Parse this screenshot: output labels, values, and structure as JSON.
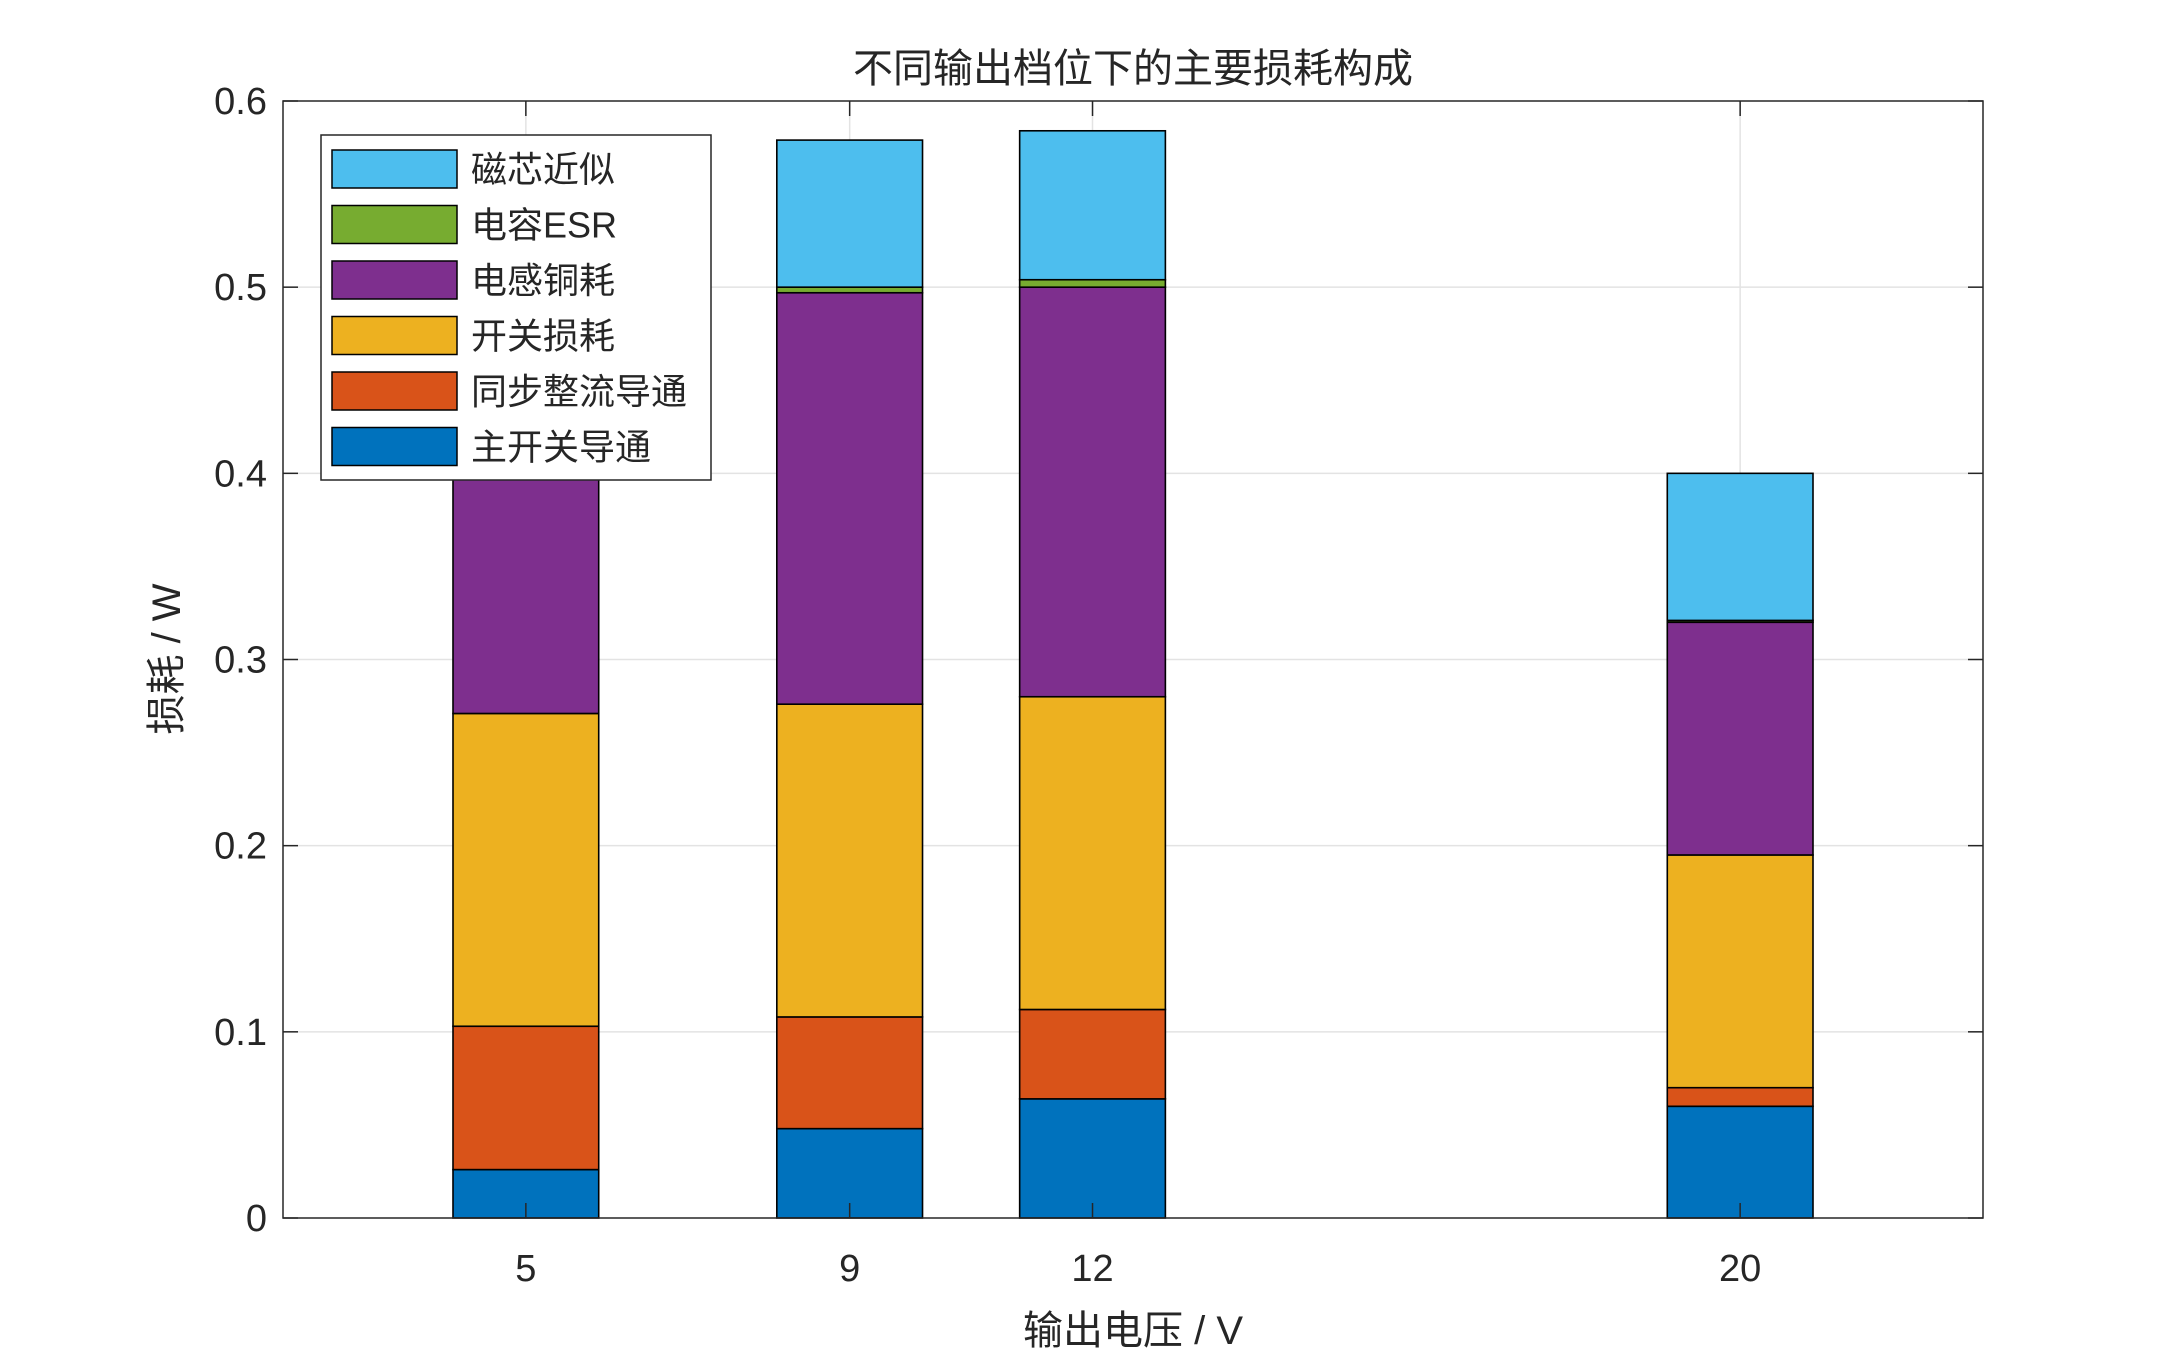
{
  "chart_data": {
    "type": "bar",
    "stacked": true,
    "title": "不同输出档位下的主要损耗构成",
    "xlabel": "输出电压 / V",
    "ylabel": "损耗 / W",
    "x": [
      5,
      9,
      12,
      20
    ],
    "xlim": [
      2,
      23
    ],
    "ylim": [
      0,
      0.6
    ],
    "x_ticks": [
      "5",
      "9",
      "12",
      "20"
    ],
    "y_ticks": [
      "0",
      "0.1",
      "0.2",
      "0.3",
      "0.4",
      "0.5",
      "0.6"
    ],
    "grid": true,
    "legend_position": "top-left",
    "series": [
      {
        "name": "主开关导通",
        "color": "#0072BD",
        "values": [
          0.026,
          0.048,
          0.064,
          0.06
        ]
      },
      {
        "name": "同步整流导通",
        "color": "#D95319",
        "values": [
          0.077,
          0.06,
          0.048,
          0.01
        ]
      },
      {
        "name": "开关损耗",
        "color": "#EDB120",
        "values": [
          0.168,
          0.168,
          0.168,
          0.125
        ]
      },
      {
        "name": "电感铜耗",
        "color": "#7E2F8E",
        "values": [
          0.139,
          0.221,
          0.22,
          0.125
        ]
      },
      {
        "name": "电容ESR",
        "color": "#77AC30",
        "values": [
          0.002,
          0.003,
          0.004,
          0.001
        ]
      },
      {
        "name": "磁芯近似",
        "color": "#4DBEEE",
        "values": [
          0.078,
          0.079,
          0.08,
          0.079
        ]
      }
    ]
  }
}
